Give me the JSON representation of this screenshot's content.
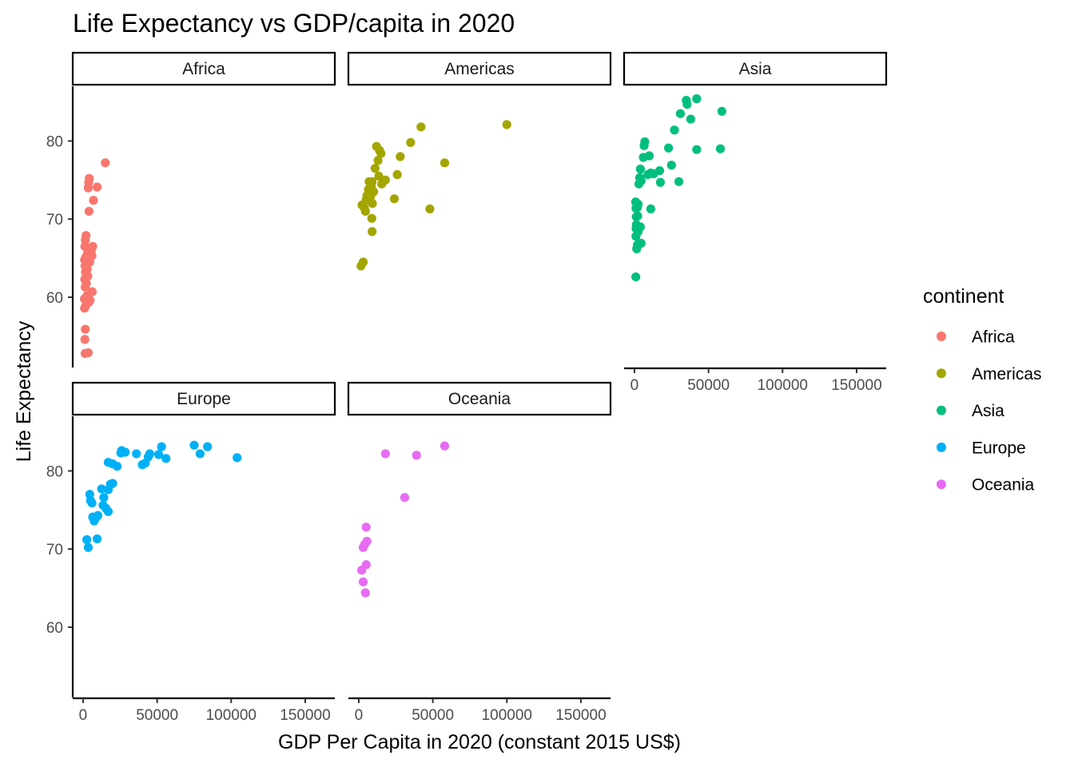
{
  "chart_data": {
    "type": "scatter",
    "title": "Life Expectancy vs GDP/capita in 2020",
    "xlabel": "GDP Per Capita in 2020 (constant 2015 US$)",
    "ylabel": "Life Expectancy",
    "xlim": [
      -7000,
      170000
    ],
    "ylim": [
      51,
      87
    ],
    "x_ticks": [
      0,
      50000,
      100000,
      150000
    ],
    "x_tick_labels": [
      "0",
      "50000",
      "100000",
      "150000"
    ],
    "y_ticks": [
      60,
      70,
      80
    ],
    "y_tick_labels": [
      "60",
      "70",
      "80"
    ],
    "grid": false,
    "facets": [
      "Africa",
      "Americas",
      "Asia",
      "Europe",
      "Oceania"
    ],
    "legend": {
      "title": "continent",
      "position": "right",
      "items": [
        {
          "name": "Africa",
          "color": "#F8766D"
        },
        {
          "name": "Americas",
          "color": "#A3A500"
        },
        {
          "name": "Asia",
          "color": "#00BF7D"
        },
        {
          "name": "Europe",
          "color": "#00B0F6"
        },
        {
          "name": "Oceania",
          "color": "#E76BF3"
        }
      ]
    },
    "series": [
      {
        "name": "Africa",
        "color": "#F8766D",
        "points": [
          [
            15000,
            77.2
          ],
          [
            9500,
            74.1
          ],
          [
            4200,
            75.2
          ],
          [
            3800,
            74.7
          ],
          [
            3500,
            74.0
          ],
          [
            7000,
            72.4
          ],
          [
            4000,
            71.0
          ],
          [
            2000,
            67.9
          ],
          [
            1500,
            67.3
          ],
          [
            6500,
            66.5
          ],
          [
            1200,
            66.5
          ],
          [
            2500,
            66.3
          ],
          [
            5500,
            65.9
          ],
          [
            3000,
            65.6
          ],
          [
            6000,
            65.3
          ],
          [
            1800,
            65.1
          ],
          [
            1000,
            64.8
          ],
          [
            4500,
            64.5
          ],
          [
            1300,
            64.0
          ],
          [
            2800,
            63.6
          ],
          [
            1600,
            63.2
          ],
          [
            3200,
            62.7
          ],
          [
            1100,
            62.3
          ],
          [
            2200,
            61.8
          ],
          [
            1400,
            61.3
          ],
          [
            6200,
            60.7
          ],
          [
            2600,
            60.2
          ],
          [
            900,
            59.8
          ],
          [
            4800,
            59.6
          ],
          [
            3600,
            59.3
          ],
          [
            1700,
            58.9
          ],
          [
            1000,
            58.6
          ],
          [
            1500,
            55.9
          ],
          [
            1200,
            54.6
          ],
          [
            3500,
            52.9
          ],
          [
            1400,
            52.8
          ]
        ]
      },
      {
        "name": "Americas",
        "color": "#A3A500",
        "points": [
          [
            100000,
            82.1
          ],
          [
            42000,
            81.8
          ],
          [
            35000,
            79.8
          ],
          [
            12000,
            79.3
          ],
          [
            14000,
            78.8
          ],
          [
            15000,
            78.4
          ],
          [
            28000,
            78.0
          ],
          [
            58000,
            77.2
          ],
          [
            13000,
            77.5
          ],
          [
            11000,
            76.5
          ],
          [
            26000,
            75.7
          ],
          [
            13500,
            75.5
          ],
          [
            7000,
            74.8
          ],
          [
            9000,
            74.8
          ],
          [
            18000,
            75.0
          ],
          [
            15500,
            74.5
          ],
          [
            8500,
            74.2
          ],
          [
            6500,
            73.8
          ],
          [
            7500,
            73.5
          ],
          [
            10000,
            73.5
          ],
          [
            5500,
            73.0
          ],
          [
            8000,
            72.9
          ],
          [
            24000,
            72.6
          ],
          [
            5000,
            72.5
          ],
          [
            9200,
            72.0
          ],
          [
            2200,
            71.8
          ],
          [
            3200,
            71.7
          ],
          [
            3800,
            71.4
          ],
          [
            48000,
            71.3
          ],
          [
            4500,
            71.0
          ],
          [
            8800,
            70.1
          ],
          [
            9000,
            68.4
          ],
          [
            3000,
            64.5
          ],
          [
            1500,
            64.0
          ]
        ]
      },
      {
        "name": "Asia",
        "color": "#00BF7D",
        "points": [
          [
            42000,
            85.4
          ],
          [
            35000,
            85.2
          ],
          [
            35500,
            84.7
          ],
          [
            59000,
            83.8
          ],
          [
            31000,
            83.5
          ],
          [
            38000,
            82.8
          ],
          [
            27000,
            81.4
          ],
          [
            7000,
            79.9
          ],
          [
            6500,
            79.4
          ],
          [
            23000,
            79.1
          ],
          [
            42000,
            78.9
          ],
          [
            58000,
            79.0
          ],
          [
            10000,
            78.1
          ],
          [
            6000,
            77.9
          ],
          [
            25000,
            76.9
          ],
          [
            4000,
            76.4
          ],
          [
            17000,
            76.2
          ],
          [
            11000,
            75.9
          ],
          [
            9000,
            75.7
          ],
          [
            13000,
            75.8
          ],
          [
            3500,
            75.3
          ],
          [
            4500,
            74.9
          ],
          [
            3000,
            74.5
          ],
          [
            17500,
            74.7
          ],
          [
            30000,
            74.8
          ],
          [
            1500,
            72.0
          ],
          [
            2500,
            71.9
          ],
          [
            800,
            72.2
          ],
          [
            1000,
            71.4
          ],
          [
            2000,
            71.5
          ],
          [
            11000,
            71.3
          ],
          [
            1200,
            70.3
          ],
          [
            2200,
            70.4
          ],
          [
            1300,
            69.3
          ],
          [
            4000,
            69.0
          ],
          [
            1100,
            68.8
          ],
          [
            2500,
            68.4
          ],
          [
            1000,
            67.8
          ],
          [
            4500,
            66.9
          ],
          [
            2000,
            66.7
          ],
          [
            1500,
            66.2
          ],
          [
            900,
            62.6
          ]
        ]
      },
      {
        "name": "Europe",
        "color": "#00B0F6",
        "points": [
          [
            75000,
            83.3
          ],
          [
            84000,
            83.1
          ],
          [
            53000,
            83.1
          ],
          [
            26000,
            82.6
          ],
          [
            28500,
            82.4
          ],
          [
            36000,
            82.2
          ],
          [
            45000,
            82.2
          ],
          [
            51000,
            82.1
          ],
          [
            25500,
            82.3
          ],
          [
            79000,
            82.2
          ],
          [
            104000,
            81.7
          ],
          [
            56000,
            81.6
          ],
          [
            44000,
            81.8
          ],
          [
            17000,
            81.1
          ],
          [
            20000,
            80.9
          ],
          [
            42000,
            81.0
          ],
          [
            23000,
            80.6
          ],
          [
            40000,
            80.8
          ],
          [
            20000,
            78.4
          ],
          [
            18500,
            78.3
          ],
          [
            12500,
            77.7
          ],
          [
            17000,
            77.6
          ],
          [
            4500,
            77.0
          ],
          [
            14000,
            76.6
          ],
          [
            5000,
            76.2
          ],
          [
            6000,
            75.9
          ],
          [
            13500,
            75.6
          ],
          [
            15500,
            75.2
          ],
          [
            17000,
            74.8
          ],
          [
            10000,
            74.3
          ],
          [
            6500,
            74.1
          ],
          [
            8500,
            74.0
          ],
          [
            7500,
            73.6
          ],
          [
            2500,
            71.2
          ],
          [
            9500,
            71.3
          ],
          [
            3500,
            70.2
          ]
        ]
      },
      {
        "name": "Oceania",
        "color": "#E76BF3",
        "points": [
          [
            58000,
            83.2
          ],
          [
            18000,
            82.2
          ],
          [
            39000,
            82.0
          ],
          [
            31000,
            76.6
          ],
          [
            5000,
            72.8
          ],
          [
            5500,
            71.0
          ],
          [
            4000,
            70.6
          ],
          [
            3000,
            70.2
          ],
          [
            5000,
            68.0
          ],
          [
            2000,
            67.3
          ],
          [
            3000,
            65.8
          ],
          [
            4500,
            64.4
          ]
        ]
      }
    ]
  }
}
